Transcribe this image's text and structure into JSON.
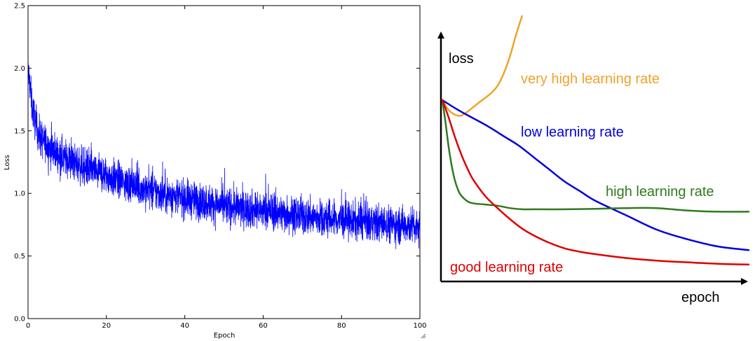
{
  "chart_data": [
    {
      "type": "line",
      "title": "",
      "xlabel": "Epoch",
      "ylabel": "Loss",
      "xlim": [
        0,
        100
      ],
      "ylim": [
        0.0,
        2.5
      ],
      "x_ticks": [
        "0",
        "20",
        "40",
        "60",
        "80",
        "100"
      ],
      "y_ticks": [
        "0.0",
        "0.5",
        "1.0",
        "1.5",
        "2.0",
        "2.5"
      ],
      "grid": false,
      "series": [
        {
          "color": "#0000ff",
          "x": [
            0,
            0.5,
            1,
            2,
            3,
            5,
            7,
            10,
            15,
            20,
            25,
            30,
            35,
            40,
            45,
            50,
            55,
            60,
            65,
            70,
            75,
            80,
            85,
            90,
            95,
            100
          ],
          "y": [
            2.0,
            1.85,
            1.7,
            1.55,
            1.45,
            1.38,
            1.33,
            1.27,
            1.2,
            1.14,
            1.08,
            1.03,
            0.99,
            0.96,
            0.93,
            0.9,
            0.88,
            0.86,
            0.84,
            0.82,
            0.8,
            0.79,
            0.77,
            0.76,
            0.75,
            0.74
          ]
        }
      ]
    },
    {
      "type": "line",
      "title": "",
      "xlabel": "epoch",
      "ylabel": "loss",
      "xlim": [
        0,
        100
      ],
      "ylim": [
        0,
        100
      ],
      "grid": false,
      "series": [
        {
          "name": "very high learning rate",
          "color": "#f0a22a",
          "x": [
            0,
            2,
            4,
            6,
            8,
            12,
            16,
            18,
            20,
            22,
            24,
            26
          ],
          "y": [
            75,
            71,
            69,
            68.5,
            70,
            74,
            78,
            81,
            86,
            93,
            102,
            110
          ]
        },
        {
          "name": "low learning rate",
          "color": "#0000dd",
          "x": [
            0,
            5,
            10,
            15,
            20,
            25,
            30,
            35,
            40,
            45,
            50,
            60,
            70,
            80,
            90,
            100
          ],
          "y": [
            75,
            71,
            67.5,
            64,
            60,
            56,
            51,
            46,
            41,
            37,
            33,
            27,
            21,
            17,
            14,
            12.5
          ]
        },
        {
          "name": "high learning rate",
          "color": "#2f7a1e",
          "x": [
            0,
            1,
            2,
            3,
            4,
            5,
            6,
            8,
            10,
            14,
            18,
            22,
            26,
            30,
            40,
            50,
            60,
            70,
            80,
            90,
            100
          ],
          "y": [
            75,
            66,
            56,
            48,
            42,
            38,
            35.5,
            33,
            32,
            31.5,
            31,
            30,
            29.5,
            29.5,
            29.5,
            29.7,
            30,
            30,
            29,
            28.5,
            28.5
          ]
        },
        {
          "name": "good learning rate",
          "color": "#dd0000",
          "x": [
            0,
            2,
            4,
            6,
            8,
            10,
            14,
            18,
            22,
            26,
            30,
            35,
            40,
            45,
            50,
            60,
            70,
            80,
            90,
            100
          ],
          "y": [
            75,
            68,
            60,
            53,
            47,
            42,
            35,
            30,
            25.5,
            21.5,
            18.5,
            15.5,
            13.2,
            11.8,
            10.8,
            9.2,
            8.1,
            7.4,
            6.8,
            6.5
          ]
        }
      ]
    }
  ]
}
